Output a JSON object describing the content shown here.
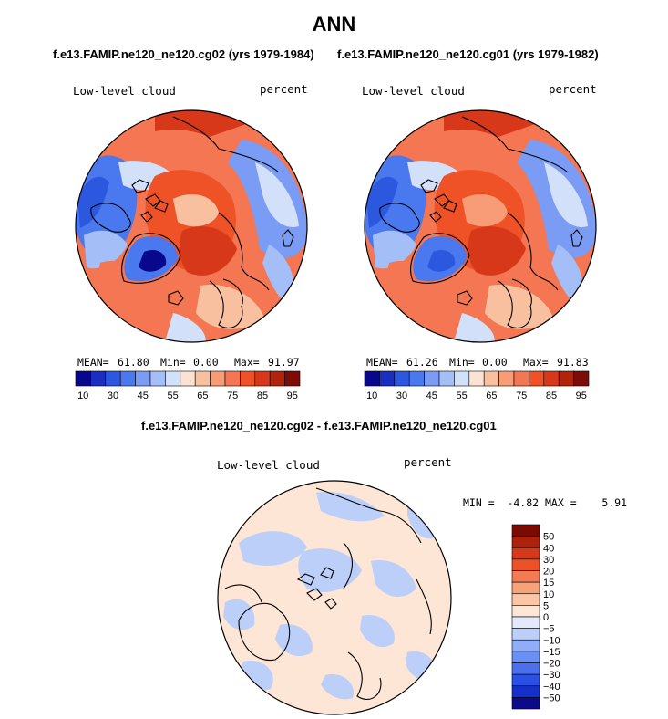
{
  "figure_title": "ANN",
  "colors": {
    "abs_palette": [
      "#08088c",
      "#1a2ec0",
      "#2c58e0",
      "#4a78ee",
      "#7a9cf4",
      "#a4bef8",
      "#d3e0fa",
      "#fbe2d3",
      "#f9c0a0",
      "#f79c76",
      "#f47652",
      "#ee5226",
      "#d8381a",
      "#b0240c",
      "#7e0c06"
    ],
    "diff_palette": [
      "#0a0a8a",
      "#1530c8",
      "#2a50e6",
      "#4a70f0",
      "#6a90f4",
      "#90aef7",
      "#bccff9",
      "#e3e9fb",
      "#fde6d6",
      "#fbc6a6",
      "#f8a27a",
      "#f47a54",
      "#ec5228",
      "#d6381a",
      "#ac220c",
      "#7c0a04"
    ],
    "coast": "#000000"
  },
  "chart_data": [
    {
      "type": "heatmap",
      "projection": "polar-stereographic-north",
      "title": "f.e13.FAMIP.ne120_ne120.cg02 (yrs 1979-1984)",
      "variable": "Low-level cloud",
      "units": "percent",
      "stats": {
        "mean_label": "MEAN=",
        "mean": "61.80",
        "min_label": "Min=",
        "min": "0.00",
        "max_label": "Max=",
        "max": "91.97"
      },
      "colorbar_levels": [
        10,
        15,
        20,
        25,
        30,
        35,
        40,
        45,
        50,
        55,
        60,
        65,
        70,
        75,
        80,
        85,
        90,
        95
      ],
      "colorbar_tick_labels": [
        "10",
        "30",
        "45",
        "55",
        "65",
        "75",
        "85",
        "95"
      ]
    },
    {
      "type": "heatmap",
      "projection": "polar-stereographic-north",
      "title": "f.e13.FAMIP.ne120_ne120.cg01 (yrs 1979-1982)",
      "variable": "Low-level cloud",
      "units": "percent",
      "stats": {
        "mean_label": "MEAN=",
        "mean": "61.26",
        "min_label": "Min=",
        "min": "0.00",
        "max_label": "Max=",
        "max": "91.83"
      },
      "colorbar_levels": [
        10,
        15,
        20,
        25,
        30,
        35,
        40,
        45,
        50,
        55,
        60,
        65,
        70,
        75,
        80,
        85,
        90,
        95
      ],
      "colorbar_tick_labels": [
        "10",
        "30",
        "45",
        "55",
        "65",
        "75",
        "85",
        "95"
      ]
    },
    {
      "type": "heatmap",
      "projection": "polar-stereographic-north",
      "title": "f.e13.FAMIP.ne120_ne120.cg02 - f.e13.FAMIP.ne120_ne120.cg01",
      "variable": "Low-level cloud",
      "units": "percent",
      "stats_text": "MIN =  -4.82 MAX =    5.91",
      "colorbar_levels": [
        -50,
        -40,
        -30,
        -20,
        -15,
        -10,
        -5,
        0,
        5,
        10,
        15,
        20,
        30,
        40,
        50
      ],
      "colorbar_tick_labels": [
        "50",
        "40",
        "30",
        "20",
        "15",
        "10",
        "5",
        "0",
        "−5",
        "−10",
        "−15",
        "−20",
        "−30",
        "−40",
        "−50"
      ]
    }
  ]
}
